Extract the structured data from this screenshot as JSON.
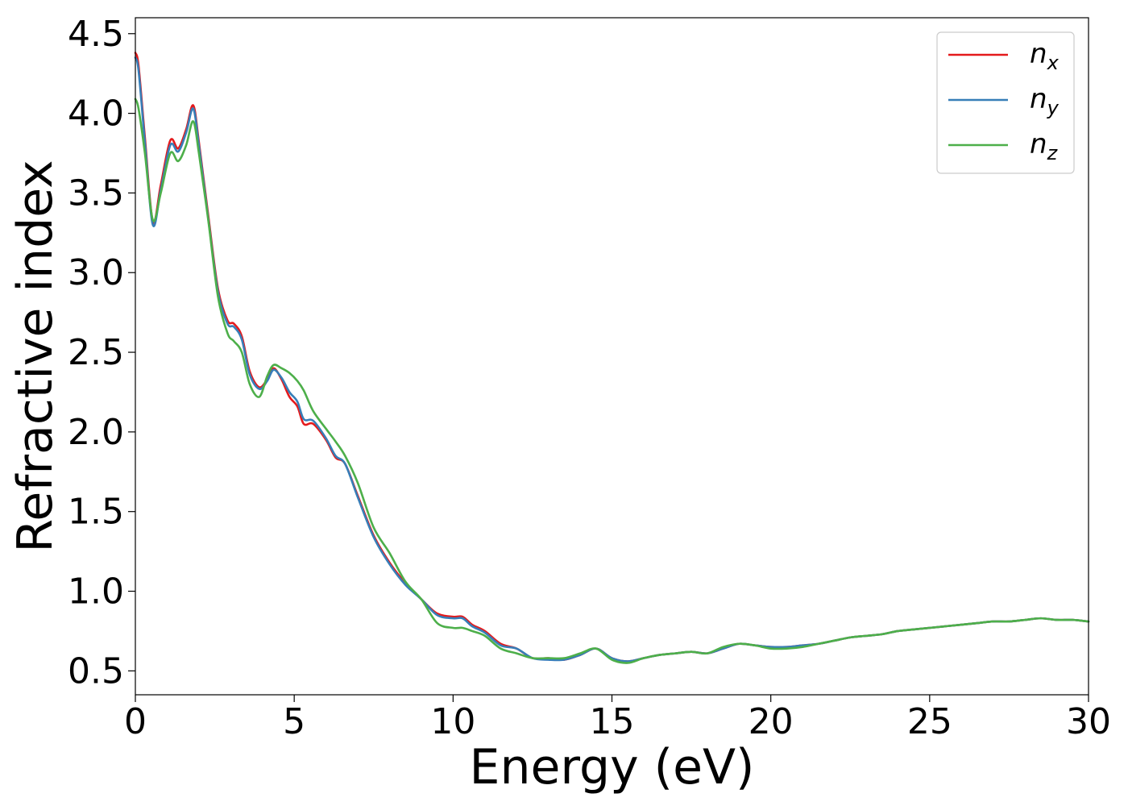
{
  "chart_data": {
    "type": "line",
    "xlabel": "Energy (eV)",
    "ylabel": "Refractive index",
    "xlim": [
      0,
      30
    ],
    "ylim": [
      0.35,
      4.6
    ],
    "xticks": [
      0,
      5,
      10,
      15,
      20,
      25,
      30
    ],
    "yticks": [
      0.5,
      1.0,
      1.5,
      2.0,
      2.5,
      3.0,
      3.5,
      4.0,
      4.5
    ],
    "xtick_labels": [
      "0",
      "5",
      "10",
      "15",
      "20",
      "25",
      "30"
    ],
    "ytick_labels": [
      "0.5",
      "1.0",
      "1.5",
      "2.0",
      "2.5",
      "3.0",
      "3.5",
      "4.0",
      "4.5"
    ],
    "grid": false,
    "legend_position": "top-right",
    "series": [
      {
        "name": "n",
        "subscript": "x",
        "color": "#e41a1c",
        "x": [
          0,
          0.1,
          0.3,
          0.55,
          0.8,
          1.1,
          1.35,
          1.6,
          1.82,
          2.0,
          2.3,
          2.6,
          2.9,
          3.1,
          3.35,
          3.6,
          3.9,
          4.15,
          4.35,
          4.6,
          4.85,
          5.1,
          5.3,
          5.6,
          6.0,
          6.3,
          6.6,
          7.0,
          7.5,
          8.0,
          8.5,
          9.0,
          9.5,
          10.0,
          10.3,
          10.6,
          11.0,
          11.5,
          12.0,
          12.5,
          13.0,
          13.5,
          14.0,
          14.5,
          15.0,
          15.5,
          16.0,
          16.5,
          17.0,
          17.5,
          18.0,
          18.5,
          19.0,
          19.5,
          20.0,
          20.5,
          21.0,
          21.5,
          22.0,
          22.5,
          23.0,
          23.5,
          24.0,
          24.5,
          25.0,
          25.5,
          26.0,
          26.5,
          27.0,
          27.5,
          28.0,
          28.5,
          29.0,
          29.5,
          30.0
        ],
        "values": [
          4.38,
          4.3,
          3.85,
          3.32,
          3.55,
          3.83,
          3.78,
          3.9,
          4.05,
          3.82,
          3.35,
          2.9,
          2.7,
          2.68,
          2.6,
          2.38,
          2.28,
          2.33,
          2.4,
          2.33,
          2.22,
          2.16,
          2.05,
          2.05,
          1.95,
          1.84,
          1.8,
          1.6,
          1.35,
          1.18,
          1.05,
          0.95,
          0.86,
          0.84,
          0.84,
          0.79,
          0.75,
          0.67,
          0.64,
          0.58,
          0.58,
          0.57,
          0.6,
          0.64,
          0.58,
          0.56,
          0.58,
          0.6,
          0.61,
          0.62,
          0.61,
          0.64,
          0.67,
          0.66,
          0.65,
          0.65,
          0.66,
          0.67,
          0.69,
          0.71,
          0.72,
          0.73,
          0.75,
          0.76,
          0.77,
          0.78,
          0.79,
          0.8,
          0.81,
          0.81,
          0.82,
          0.83,
          0.82,
          0.82,
          0.81
        ]
      },
      {
        "name": "n",
        "subscript": "y",
        "color": "#377eb8",
        "x": [
          0,
          0.1,
          0.3,
          0.55,
          0.8,
          1.1,
          1.35,
          1.6,
          1.82,
          2.0,
          2.3,
          2.6,
          2.9,
          3.1,
          3.35,
          3.6,
          3.9,
          4.15,
          4.35,
          4.6,
          4.85,
          5.1,
          5.3,
          5.6,
          6.0,
          6.3,
          6.6,
          7.0,
          7.5,
          8.0,
          8.5,
          9.0,
          9.5,
          10.0,
          10.3,
          10.6,
          11.0,
          11.5,
          12.0,
          12.5,
          13.0,
          13.5,
          14.0,
          14.5,
          15.0,
          15.5,
          16.0,
          16.5,
          17.0,
          17.5,
          18.0,
          18.5,
          19.0,
          19.5,
          20.0,
          20.5,
          21.0,
          21.5,
          22.0,
          22.5,
          23.0,
          23.5,
          24.0,
          24.5,
          25.0,
          25.5,
          26.0,
          26.5,
          27.0,
          27.5,
          28.0,
          28.5,
          29.0,
          29.5,
          30.0
        ],
        "values": [
          4.35,
          4.27,
          3.82,
          3.3,
          3.52,
          3.8,
          3.76,
          3.88,
          4.03,
          3.8,
          3.33,
          2.88,
          2.68,
          2.66,
          2.58,
          2.36,
          2.27,
          2.32,
          2.39,
          2.34,
          2.25,
          2.19,
          2.08,
          2.07,
          1.96,
          1.85,
          1.8,
          1.59,
          1.34,
          1.17,
          1.04,
          0.95,
          0.85,
          0.83,
          0.83,
          0.78,
          0.74,
          0.66,
          0.64,
          0.58,
          0.57,
          0.57,
          0.6,
          0.64,
          0.58,
          0.56,
          0.58,
          0.6,
          0.61,
          0.62,
          0.61,
          0.64,
          0.67,
          0.66,
          0.65,
          0.65,
          0.66,
          0.67,
          0.69,
          0.71,
          0.72,
          0.73,
          0.75,
          0.76,
          0.77,
          0.78,
          0.79,
          0.8,
          0.81,
          0.81,
          0.82,
          0.83,
          0.82,
          0.82,
          0.81
        ]
      },
      {
        "name": "n",
        "subscript": "z",
        "color": "#4daf4a",
        "x": [
          0,
          0.1,
          0.3,
          0.55,
          0.8,
          1.1,
          1.35,
          1.6,
          1.82,
          2.0,
          2.3,
          2.6,
          2.9,
          3.1,
          3.35,
          3.6,
          3.9,
          4.15,
          4.35,
          4.6,
          4.85,
          5.1,
          5.3,
          5.6,
          6.0,
          6.3,
          6.6,
          7.0,
          7.5,
          8.0,
          8.5,
          9.0,
          9.5,
          10.0,
          10.3,
          10.6,
          11.0,
          11.5,
          12.0,
          12.5,
          13.0,
          13.5,
          14.0,
          14.5,
          15.0,
          15.5,
          16.0,
          16.5,
          17.0,
          17.5,
          18.0,
          18.5,
          19.0,
          19.5,
          20.0,
          20.5,
          21.0,
          21.5,
          22.0,
          22.5,
          23.0,
          23.5,
          24.0,
          24.5,
          25.0,
          25.5,
          26.0,
          26.5,
          27.0,
          27.5,
          28.0,
          28.5,
          29.0,
          29.5,
          30.0
        ],
        "values": [
          4.09,
          4.03,
          3.75,
          3.33,
          3.5,
          3.75,
          3.7,
          3.8,
          3.95,
          3.75,
          3.32,
          2.85,
          2.62,
          2.57,
          2.5,
          2.3,
          2.22,
          2.35,
          2.42,
          2.4,
          2.37,
          2.32,
          2.26,
          2.13,
          2.02,
          1.94,
          1.85,
          1.68,
          1.4,
          1.24,
          1.06,
          0.95,
          0.8,
          0.77,
          0.77,
          0.75,
          0.72,
          0.64,
          0.61,
          0.58,
          0.58,
          0.58,
          0.61,
          0.64,
          0.57,
          0.55,
          0.58,
          0.6,
          0.61,
          0.62,
          0.61,
          0.65,
          0.67,
          0.66,
          0.64,
          0.64,
          0.65,
          0.67,
          0.69,
          0.71,
          0.72,
          0.73,
          0.75,
          0.76,
          0.77,
          0.78,
          0.79,
          0.8,
          0.81,
          0.81,
          0.82,
          0.83,
          0.82,
          0.82,
          0.81
        ]
      }
    ]
  }
}
